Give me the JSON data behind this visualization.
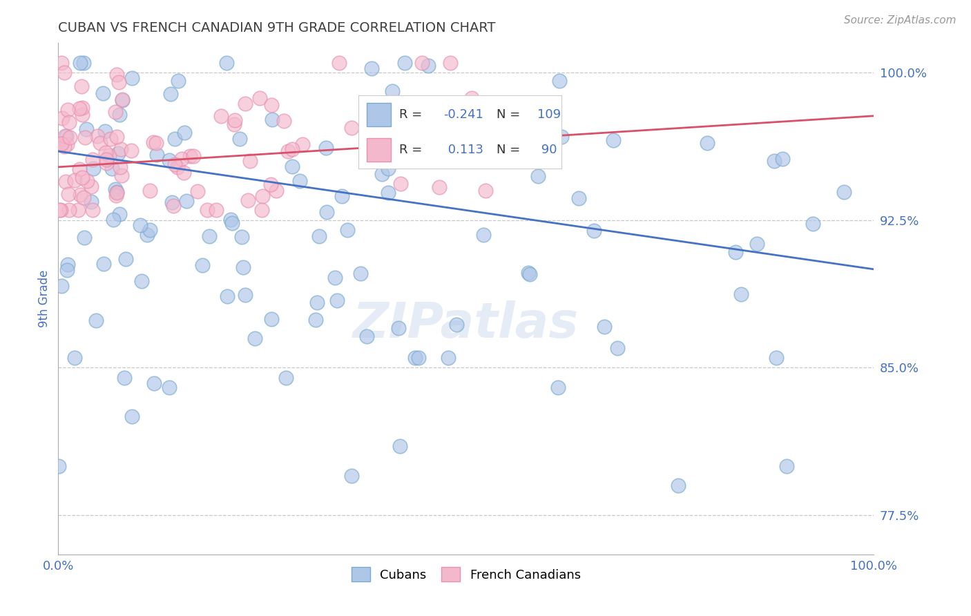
{
  "title": "CUBAN VS FRENCH CANADIAN 9TH GRADE CORRELATION CHART",
  "source": "Source: ZipAtlas.com",
  "ylabel": "9th Grade",
  "xlim": [
    0.0,
    1.0
  ],
  "ylim": [
    0.755,
    1.015
  ],
  "yticks": [
    0.775,
    0.85,
    0.925,
    1.0
  ],
  "ytick_labels": [
    "77.5%",
    "85.0%",
    "92.5%",
    "100.0%"
  ],
  "xtick_labels": [
    "0.0%",
    "100.0%"
  ],
  "xticks": [
    0.0,
    1.0
  ],
  "cuban_color": "#aec6e8",
  "french_color": "#f4b8cc",
  "cuban_edge_color": "#7aaad0",
  "french_edge_color": "#e890b0",
  "cuban_line_color": "#4472c4",
  "french_line_color": "#d9506a",
  "cuban_R": -0.241,
  "cuban_N": 109,
  "french_R": 0.113,
  "french_N": 90,
  "cuban_line_start_y": 0.96,
  "cuban_line_end_y": 0.9,
  "french_line_start_y": 0.952,
  "french_line_end_y": 0.978,
  "legend_labels": [
    "Cubans",
    "French Canadians"
  ],
  "background_color": "#ffffff",
  "grid_color": "#c8c8c8",
  "title_color": "#404040",
  "axis_label_color": "#4472c4",
  "tick_label_color": "#4472c4",
  "source_color": "#999999",
  "legend_text_color": "#333333",
  "legend_value_color": "#4472c4"
}
